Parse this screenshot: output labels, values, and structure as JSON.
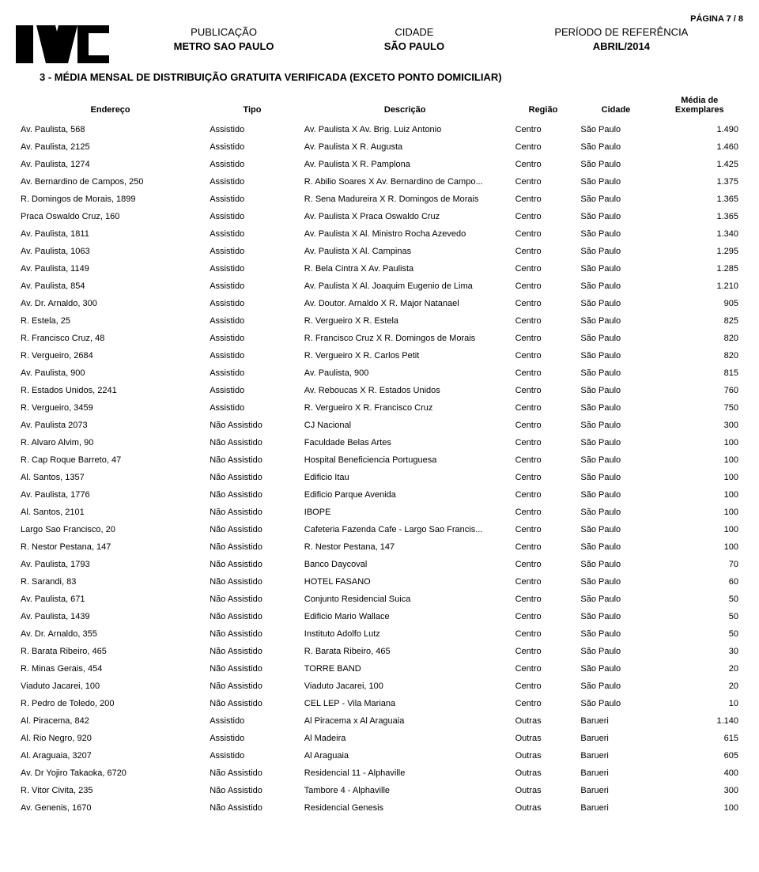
{
  "pageNumber": "PÁGINA 7 / 8",
  "header": {
    "pubLabel": "PUBLICAÇÃO",
    "pubValue": "METRO SAO PAULO",
    "cityLabel": "CIDADE",
    "cityValue": "SÃO PAULO",
    "periodLabel": "PERÍODO DE REFERÊNCIA",
    "periodValue": "ABRIL/2014"
  },
  "sectionTitle": "3 - MÉDIA MENSAL DE DISTRIBUIÇÃO GRATUITA VERIFICADA (EXCETO PONTO DOMICILIAR)",
  "columns": {
    "endereco": "Endereço",
    "tipo": "Tipo",
    "descricao": "Descrição",
    "regiao": "Região",
    "cidade": "Cidade",
    "media": "Média de Exemplares"
  },
  "rows": [
    {
      "e": "Av. Paulista, 568",
      "t": "Assistido",
      "d": "Av. Paulista X Av. Brig. Luiz Antonio",
      "r": "Centro",
      "c": "São Paulo",
      "m": "1.490"
    },
    {
      "e": "Av. Paulista, 2125",
      "t": "Assistido",
      "d": "Av. Paulista X R. Augusta",
      "r": "Centro",
      "c": "São Paulo",
      "m": "1.460"
    },
    {
      "e": "Av. Paulista, 1274",
      "t": "Assistido",
      "d": "Av. Paulista X R. Pamplona",
      "r": "Centro",
      "c": "São Paulo",
      "m": "1.425"
    },
    {
      "e": "Av. Bernardino de Campos, 250",
      "t": "Assistido",
      "d": "R. Abilio Soares X Av. Bernardino de Campo...",
      "r": "Centro",
      "c": "São Paulo",
      "m": "1.375"
    },
    {
      "e": "R. Domingos de Morais, 1899",
      "t": "Assistido",
      "d": "R. Sena Madureira X R. Domingos de Morais",
      "r": "Centro",
      "c": "São Paulo",
      "m": "1.365"
    },
    {
      "e": "Praca Oswaldo Cruz, 160",
      "t": "Assistido",
      "d": "Av. Paulista X Praca Oswaldo Cruz",
      "r": "Centro",
      "c": "São Paulo",
      "m": "1.365"
    },
    {
      "e": "Av. Paulista, 1811",
      "t": "Assistido",
      "d": "Av. Paulista X Al. Ministro Rocha Azevedo",
      "r": "Centro",
      "c": "São Paulo",
      "m": "1.340"
    },
    {
      "e": "Av. Paulista, 1063",
      "t": "Assistido",
      "d": "Av. Paulista X Al. Campinas",
      "r": "Centro",
      "c": "São Paulo",
      "m": "1.295"
    },
    {
      "e": "Av. Paulista, 1149",
      "t": "Assistido",
      "d": "R. Bela Cintra X Av. Paulista",
      "r": "Centro",
      "c": "São Paulo",
      "m": "1.285"
    },
    {
      "e": "Av. Paulista, 854",
      "t": "Assistido",
      "d": "Av. Paulista X Al. Joaquim Eugenio de Lima",
      "r": "Centro",
      "c": "São Paulo",
      "m": "1.210"
    },
    {
      "e": "Av. Dr. Arnaldo, 300",
      "t": "Assistido",
      "d": "Av. Doutor. Arnaldo X R. Major Natanael",
      "r": "Centro",
      "c": "São Paulo",
      "m": "905"
    },
    {
      "e": "R. Estela, 25",
      "t": "Assistido",
      "d": "R. Vergueiro X R. Estela",
      "r": "Centro",
      "c": "São Paulo",
      "m": "825"
    },
    {
      "e": "R. Francisco Cruz, 48",
      "t": "Assistido",
      "d": "R. Francisco Cruz X R. Domingos de Morais",
      "r": "Centro",
      "c": "São Paulo",
      "m": "820"
    },
    {
      "e": "R. Vergueiro, 2684",
      "t": "Assistido",
      "d": "R. Vergueiro X R. Carlos Petit",
      "r": "Centro",
      "c": "São Paulo",
      "m": "820"
    },
    {
      "e": "Av. Paulista, 900",
      "t": "Assistido",
      "d": "Av. Paulista, 900",
      "r": "Centro",
      "c": "São Paulo",
      "m": "815"
    },
    {
      "e": "R. Estados Unidos, 2241",
      "t": "Assistido",
      "d": "Av. Reboucas X R. Estados Unidos",
      "r": "Centro",
      "c": "São Paulo",
      "m": "760"
    },
    {
      "e": "R. Vergueiro, 3459",
      "t": "Assistido",
      "d": "R. Vergueiro X R. Francisco Cruz",
      "r": "Centro",
      "c": "São Paulo",
      "m": "750"
    },
    {
      "e": "Av. Paulista 2073",
      "t": "Não Assistido",
      "d": "CJ Nacional",
      "r": "Centro",
      "c": "São Paulo",
      "m": "300"
    },
    {
      "e": "R. Alvaro Alvim, 90",
      "t": "Não Assistido",
      "d": "Faculdade Belas Artes",
      "r": "Centro",
      "c": "São Paulo",
      "m": "100"
    },
    {
      "e": "R. Cap Roque Barreto, 47",
      "t": "Não Assistido",
      "d": "Hospital Beneficiencia Portuguesa",
      "r": "Centro",
      "c": "São Paulo",
      "m": "100"
    },
    {
      "e": "Al. Santos, 1357",
      "t": "Não Assistido",
      "d": "Edificio Itau",
      "r": "Centro",
      "c": "São Paulo",
      "m": "100"
    },
    {
      "e": "Av. Paulista, 1776",
      "t": "Não Assistido",
      "d": "Edificio Parque Avenida",
      "r": "Centro",
      "c": "São Paulo",
      "m": "100"
    },
    {
      "e": "Al. Santos, 2101",
      "t": "Não Assistido",
      "d": "IBOPE",
      "r": "Centro",
      "c": "São Paulo",
      "m": "100"
    },
    {
      "e": "Largo Sao Francisco, 20",
      "t": "Não Assistido",
      "d": "Cafeteria Fazenda Cafe - Largo Sao Francis...",
      "r": "Centro",
      "c": "São Paulo",
      "m": "100"
    },
    {
      "e": "R. Nestor Pestana, 147",
      "t": "Não Assistido",
      "d": "R. Nestor Pestana, 147",
      "r": "Centro",
      "c": "São Paulo",
      "m": "100"
    },
    {
      "e": "Av. Paulista, 1793",
      "t": "Não Assistido",
      "d": "Banco Daycoval",
      "r": "Centro",
      "c": "São Paulo",
      "m": "70"
    },
    {
      "e": "R. Sarandi, 83",
      "t": "Não Assistido",
      "d": "HOTEL FASANO",
      "r": "Centro",
      "c": "São Paulo",
      "m": "60"
    },
    {
      "e": "Av. Paulista, 671",
      "t": "Não Assistido",
      "d": "Conjunto Residencial Suica",
      "r": "Centro",
      "c": "São Paulo",
      "m": "50"
    },
    {
      "e": "Av. Paulista, 1439",
      "t": "Não Assistido",
      "d": "Edificio Mario Wallace",
      "r": "Centro",
      "c": "São Paulo",
      "m": "50"
    },
    {
      "e": "Av. Dr. Arnaldo, 355",
      "t": "Não Assistido",
      "d": "Instituto Adolfo Lutz",
      "r": "Centro",
      "c": "São Paulo",
      "m": "50"
    },
    {
      "e": "R. Barata Ribeiro, 465",
      "t": "Não Assistido",
      "d": "R. Barata Ribeiro, 465",
      "r": "Centro",
      "c": "São Paulo",
      "m": "30"
    },
    {
      "e": "R. Minas Gerais, 454",
      "t": "Não Assistido",
      "d": "TORRE BAND",
      "r": "Centro",
      "c": "São Paulo",
      "m": "20"
    },
    {
      "e": "Viaduto Jacarei, 100",
      "t": "Não Assistido",
      "d": "Viaduto Jacarei, 100",
      "r": "Centro",
      "c": "São Paulo",
      "m": "20"
    },
    {
      "e": "R. Pedro de Toledo, 200",
      "t": "Não Assistido",
      "d": "CEL LEP - Vila Mariana",
      "r": "Centro",
      "c": "São Paulo",
      "m": "10"
    },
    {
      "e": "Al. Piracema, 842",
      "t": "Assistido",
      "d": "Al Piracema x Al Araguaia",
      "r": "Outras",
      "c": "Barueri",
      "m": "1.140"
    },
    {
      "e": "Al. Rio Negro, 920",
      "t": "Assistido",
      "d": "Al Madeira",
      "r": "Outras",
      "c": "Barueri",
      "m": "615"
    },
    {
      "e": "Al. Araguaia, 3207",
      "t": "Assistido",
      "d": "Al Araguaia",
      "r": "Outras",
      "c": "Barueri",
      "m": "605"
    },
    {
      "e": "Av. Dr Yojiro Takaoka, 6720",
      "t": "Não Assistido",
      "d": "Residencial 11 - Alphaville",
      "r": "Outras",
      "c": "Barueri",
      "m": "400"
    },
    {
      "e": "R. Vitor Civita, 235",
      "t": "Não Assistido",
      "d": "Tambore 4 - Alphaville",
      "r": "Outras",
      "c": "Barueri",
      "m": "300"
    },
    {
      "e": "Av. Genenis, 1670",
      "t": "Não Assistido",
      "d": "Residencial Genesis",
      "r": "Outras",
      "c": "Barueri",
      "m": "100"
    }
  ]
}
